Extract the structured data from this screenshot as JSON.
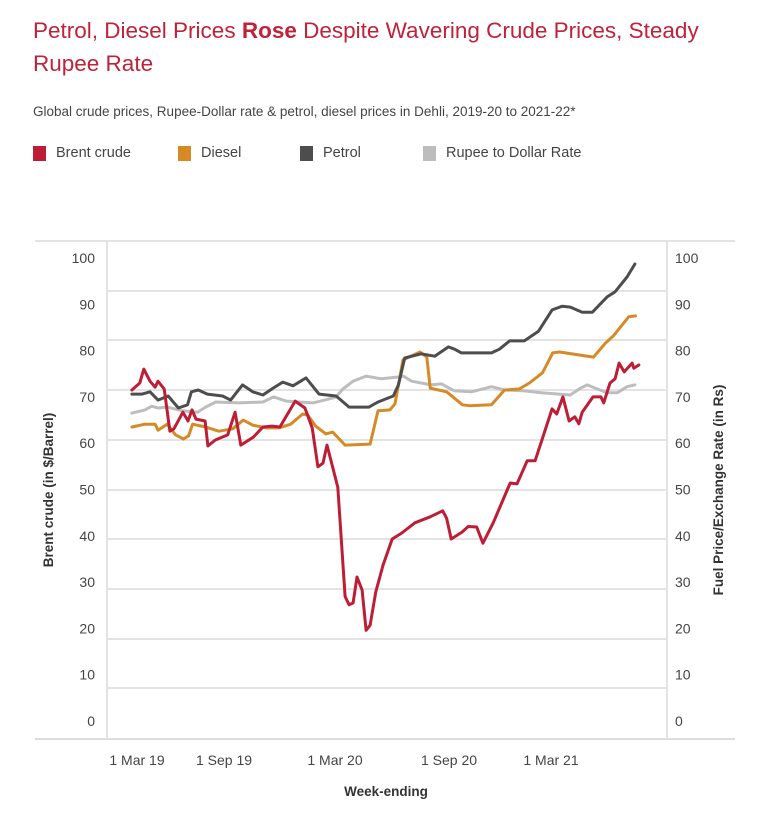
{
  "title": {
    "before": "Petrol, Diesel Prices ",
    "bold": "Rose",
    "after": " Despite Wavering Crude Prices, Steady Rupee Rate"
  },
  "subtitle": "Global crude prices, Rupee-Dollar rate & petrol, diesel prices in Dehli, 2019-20 to 2021-22*",
  "chart_data": {
    "type": "line",
    "xlabel": "Week-ending",
    "ylabel_left": "Brent crude (in $/Barrel)",
    "ylabel_right": "Fuel Price/Exchange Rate (in Rs)",
    "ylim_left": [
      0,
      100
    ],
    "ylim_right": [
      0,
      100
    ],
    "yticks": [
      100,
      90,
      80,
      70,
      60,
      50,
      40,
      30,
      20,
      10,
      0
    ],
    "xticks": [
      {
        "label": "1 Mar 19",
        "date": "2019-03-01"
      },
      {
        "label": "1 Sep 19",
        "date": "2019-09-01"
      },
      {
        "label": "1 Mar 20",
        "date": "2020-03-01"
      },
      {
        "label": "1 Sep 20",
        "date": "2020-09-01"
      },
      {
        "label": "1 Mar 21",
        "date": "2021-03-01"
      }
    ],
    "grid": true,
    "legend_position": "top",
    "series": [
      {
        "name": "Brent crude",
        "axis": "left",
        "color": "#be1e35",
        "points": [
          [
            "2019-02-20",
            71.5
          ],
          [
            "2019-03-06",
            73.0
          ],
          [
            "2019-03-13",
            76.0
          ],
          [
            "2019-03-24",
            73.4
          ],
          [
            "2019-04-02",
            72.1
          ],
          [
            "2019-04-07",
            73.4
          ],
          [
            "2019-04-18",
            71.7
          ],
          [
            "2019-04-28",
            62.6
          ],
          [
            "2019-05-05",
            63.1
          ],
          [
            "2019-05-21",
            66.7
          ],
          [
            "2019-05-30",
            64.8
          ],
          [
            "2019-06-06",
            67.2
          ],
          [
            "2019-06-13",
            65.2
          ],
          [
            "2019-06-29",
            64.8
          ],
          [
            "2019-07-04",
            59.4
          ],
          [
            "2019-07-17",
            60.7
          ],
          [
            "2019-08-08",
            61.8
          ],
          [
            "2019-08-21",
            66.7
          ],
          [
            "2019-08-31",
            59.6
          ],
          [
            "2019-09-22",
            61.3
          ],
          [
            "2019-10-09",
            63.5
          ],
          [
            "2019-10-25",
            63.7
          ],
          [
            "2019-11-08",
            63.5
          ],
          [
            "2019-12-05",
            69.1
          ],
          [
            "2019-12-22",
            67.6
          ],
          [
            "2020-01-04",
            63.3
          ],
          [
            "2020-01-14",
            54.9
          ],
          [
            "2020-01-23",
            55.7
          ],
          [
            "2020-01-30",
            59.6
          ],
          [
            "2020-02-18",
            50.5
          ],
          [
            "2020-03-02",
            26.9
          ],
          [
            "2020-03-09",
            25.1
          ],
          [
            "2020-03-16",
            25.5
          ],
          [
            "2020-03-23",
            31.1
          ],
          [
            "2020-04-01",
            28.3
          ],
          [
            "2020-04-08",
            19.6
          ],
          [
            "2020-04-15",
            20.7
          ],
          [
            "2020-04-25",
            27.9
          ],
          [
            "2020-05-08",
            33.7
          ],
          [
            "2020-05-24",
            39.3
          ],
          [
            "2020-06-10",
            40.6
          ],
          [
            "2020-07-03",
            42.8
          ],
          [
            "2020-07-30",
            44.1
          ],
          [
            "2020-08-21",
            45.4
          ],
          [
            "2020-08-28",
            43.8
          ],
          [
            "2020-09-05",
            39.3
          ],
          [
            "2020-09-24",
            40.8
          ],
          [
            "2020-10-05",
            42.0
          ],
          [
            "2020-10-20",
            41.9
          ],
          [
            "2020-10-31",
            38.4
          ],
          [
            "2020-11-18",
            42.8
          ],
          [
            "2020-12-03",
            47.1
          ],
          [
            "2020-12-18",
            51.4
          ],
          [
            "2020-12-30",
            51.2
          ],
          [
            "2021-01-17",
            56.2
          ],
          [
            "2021-01-31",
            56.2
          ],
          [
            "2021-03-02",
            67.4
          ],
          [
            "2021-03-10",
            66.3
          ],
          [
            "2021-03-21",
            70.0
          ],
          [
            "2021-04-01",
            64.8
          ],
          [
            "2021-04-11",
            65.7
          ],
          [
            "2021-04-18",
            64.2
          ],
          [
            "2021-04-24",
            66.7
          ],
          [
            "2021-05-13",
            70.0
          ],
          [
            "2021-05-27",
            70.0
          ],
          [
            "2021-06-01",
            68.7
          ],
          [
            "2021-06-12",
            73.0
          ],
          [
            "2021-06-21",
            73.9
          ],
          [
            "2021-06-28",
            77.3
          ],
          [
            "2021-07-07",
            75.4
          ],
          [
            "2021-07-21",
            77.3
          ],
          [
            "2021-07-24",
            76.2
          ],
          [
            "2021-08-02",
            76.9
          ]
        ]
      },
      {
        "name": "Diesel",
        "axis": "right",
        "color": "#d68a26",
        "points": [
          [
            "2019-02-20",
            63.5
          ],
          [
            "2019-03-15",
            64.1
          ],
          [
            "2019-04-02",
            64.1
          ],
          [
            "2019-04-07",
            62.8
          ],
          [
            "2019-04-23",
            64.1
          ],
          [
            "2019-05-08",
            61.8
          ],
          [
            "2019-05-22",
            60.9
          ],
          [
            "2019-05-31",
            61.6
          ],
          [
            "2019-06-07",
            64.1
          ],
          [
            "2019-06-30",
            63.5
          ],
          [
            "2019-07-23",
            62.6
          ],
          [
            "2019-08-17",
            63.1
          ],
          [
            "2019-09-04",
            65.0
          ],
          [
            "2019-09-21",
            63.9
          ],
          [
            "2019-10-14",
            63.3
          ],
          [
            "2019-11-06",
            63.3
          ],
          [
            "2019-11-27",
            64.1
          ],
          [
            "2019-12-18",
            66.3
          ],
          [
            "2019-12-27",
            66.1
          ],
          [
            "2020-01-10",
            63.7
          ],
          [
            "2020-01-28",
            62.0
          ],
          [
            "2020-02-09",
            62.4
          ],
          [
            "2020-03-02",
            59.6
          ],
          [
            "2020-04-15",
            59.8
          ],
          [
            "2020-04-29",
            67.0
          ],
          [
            "2020-05-20",
            67.2
          ],
          [
            "2020-05-29",
            68.5
          ],
          [
            "2020-06-12",
            78.0
          ],
          [
            "2020-07-12",
            79.7
          ],
          [
            "2020-07-24",
            78.6
          ],
          [
            "2020-07-30",
            71.9
          ],
          [
            "2020-08-28",
            71.1
          ],
          [
            "2020-09-25",
            68.3
          ],
          [
            "2020-10-07",
            68.1
          ],
          [
            "2020-11-15",
            68.3
          ],
          [
            "2020-12-08",
            71.5
          ],
          [
            "2021-01-03",
            71.7
          ],
          [
            "2021-01-21",
            73.0
          ],
          [
            "2021-02-13",
            75.2
          ],
          [
            "2021-03-03",
            79.5
          ],
          [
            "2021-03-15",
            79.7
          ],
          [
            "2021-05-14",
            78.6
          ],
          [
            "2021-06-04",
            81.6
          ],
          [
            "2021-06-18",
            83.2
          ],
          [
            "2021-07-15",
            87.3
          ],
          [
            "2021-07-27",
            87.5
          ]
        ]
      },
      {
        "name": "Petrol",
        "axis": "right",
        "color": "#4d4d4d",
        "points": [
          [
            "2019-02-20",
            70.6
          ],
          [
            "2019-03-10",
            70.6
          ],
          [
            "2019-03-24",
            71.1
          ],
          [
            "2019-04-07",
            69.3
          ],
          [
            "2019-04-25",
            70.2
          ],
          [
            "2019-05-13",
            67.6
          ],
          [
            "2019-05-29",
            68.3
          ],
          [
            "2019-06-05",
            71.1
          ],
          [
            "2019-06-17",
            71.5
          ],
          [
            "2019-07-03",
            70.6
          ],
          [
            "2019-07-30",
            70.2
          ],
          [
            "2019-08-13",
            69.3
          ],
          [
            "2019-09-03",
            72.6
          ],
          [
            "2019-09-21",
            71.1
          ],
          [
            "2019-10-09",
            70.4
          ],
          [
            "2019-10-27",
            71.9
          ],
          [
            "2019-11-13",
            73.2
          ],
          [
            "2019-12-01",
            72.4
          ],
          [
            "2019-12-24",
            74.1
          ],
          [
            "2020-01-16",
            70.6
          ],
          [
            "2020-02-15",
            70.2
          ],
          [
            "2020-03-09",
            67.8
          ],
          [
            "2020-04-13",
            67.8
          ],
          [
            "2020-04-29",
            68.9
          ],
          [
            "2020-05-26",
            70.2
          ],
          [
            "2020-06-04",
            72.6
          ],
          [
            "2020-06-15",
            78.4
          ],
          [
            "2020-07-14",
            79.3
          ],
          [
            "2020-08-07",
            78.8
          ],
          [
            "2020-08-31",
            80.8
          ],
          [
            "2020-09-11",
            80.3
          ],
          [
            "2020-09-23",
            79.5
          ],
          [
            "2020-11-15",
            79.5
          ],
          [
            "2020-11-29",
            80.3
          ],
          [
            "2020-12-17",
            82.1
          ],
          [
            "2021-01-12",
            82.1
          ],
          [
            "2021-02-06",
            84.2
          ],
          [
            "2021-03-02",
            88.8
          ],
          [
            "2021-03-20",
            89.6
          ],
          [
            "2021-04-03",
            89.4
          ],
          [
            "2021-04-24",
            88.3
          ],
          [
            "2021-05-12",
            88.3
          ],
          [
            "2021-06-07",
            91.6
          ],
          [
            "2021-06-21",
            92.7
          ],
          [
            "2021-07-12",
            95.9
          ],
          [
            "2021-07-26",
            98.7
          ]
        ]
      },
      {
        "name": "Rupee to Dollar Rate",
        "axis": "right",
        "color": "#bdbdbd",
        "points": [
          [
            "2019-02-20",
            66.5
          ],
          [
            "2019-03-15",
            67.2
          ],
          [
            "2019-03-27",
            68.0
          ],
          [
            "2019-04-07",
            67.6
          ],
          [
            "2019-04-23",
            67.8
          ],
          [
            "2019-05-20",
            67.0
          ],
          [
            "2019-06-16",
            66.7
          ],
          [
            "2019-06-30",
            67.8
          ],
          [
            "2019-07-18",
            68.9
          ],
          [
            "2019-08-28",
            68.7
          ],
          [
            "2019-10-09",
            68.9
          ],
          [
            "2019-10-28",
            70.0
          ],
          [
            "2019-11-19",
            69.1
          ],
          [
            "2020-01-05",
            68.7
          ],
          [
            "2020-02-01",
            69.5
          ],
          [
            "2020-02-15",
            70.0
          ],
          [
            "2020-02-27",
            71.7
          ],
          [
            "2020-03-16",
            73.4
          ],
          [
            "2020-04-08",
            74.5
          ],
          [
            "2020-05-05",
            73.9
          ],
          [
            "2020-06-04",
            74.3
          ],
          [
            "2020-06-13",
            74.5
          ],
          [
            "2020-06-27",
            73.4
          ],
          [
            "2020-08-01",
            72.6
          ],
          [
            "2020-08-19",
            72.8
          ],
          [
            "2020-09-11",
            71.3
          ],
          [
            "2020-10-11",
            71.1
          ],
          [
            "2020-11-15",
            72.2
          ],
          [
            "2020-12-08",
            71.5
          ],
          [
            "2021-01-12",
            71.3
          ],
          [
            "2021-02-11",
            70.9
          ],
          [
            "2021-04-03",
            70.4
          ],
          [
            "2021-04-21",
            71.9
          ],
          [
            "2021-05-03",
            72.6
          ],
          [
            "2021-05-17",
            71.9
          ],
          [
            "2021-06-07",
            70.9
          ],
          [
            "2021-06-25",
            70.9
          ],
          [
            "2021-07-12",
            72.2
          ],
          [
            "2021-07-26",
            72.6
          ]
        ]
      }
    ]
  }
}
